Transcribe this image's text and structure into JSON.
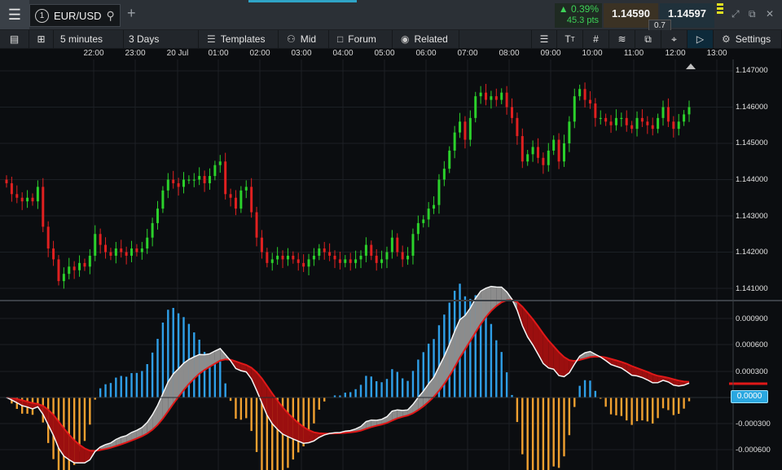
{
  "instrument": {
    "index": "1",
    "symbol": "EUR/USD",
    "change_pct": "0.39%",
    "change_pts": "45.3 pts",
    "bid": "1.14590",
    "ask": "1.14597",
    "spread": "0.7"
  },
  "toolbar": {
    "interval": "5 minutes",
    "range": "3 Days",
    "templates": "Templates",
    "mid": "Mid",
    "forum": "Forum",
    "related": "Related",
    "settings": "Settings"
  },
  "colors": {
    "up": "#2bd12b",
    "down": "#e02020",
    "macd_pos": "#2f9fe8",
    "macd_neg": "#f0a030",
    "accent": "#2fa4c7"
  },
  "icons": [
    "menu-icon",
    "search-icon",
    "plus-icon",
    "up-triangle-icon",
    "expand-icon",
    "popout-icon",
    "close-icon",
    "list-icon",
    "layout-icon",
    "templates-icon",
    "chat-icon",
    "eye-icon",
    "text-tool-icon",
    "grid-icon",
    "studies-icon",
    "clone-icon",
    "crosshair-icon",
    "tag-icon",
    "gear-icon"
  ],
  "time_axis": {
    "labels": [
      "22:00",
      "23:00",
      "20 Jul",
      "01:00",
      "02:00",
      "03:00",
      "04:00",
      "05:00",
      "06:00",
      "07:00",
      "08:00",
      "09:00",
      "10:00",
      "11:00",
      "12:00",
      "13:00"
    ]
  },
  "price_axis": {
    "labels": [
      "1.147000",
      "1.146000",
      "1.145000",
      "1.144000",
      "1.143000",
      "1.142000",
      "1.141000"
    ]
  },
  "indicator_axis": {
    "labels": [
      "0.000900",
      "0.000600",
      "0.000300",
      "-0.000300",
      "-0.000600"
    ],
    "current": "0.0000"
  },
  "chart_data": {
    "type": "candlestick",
    "price_range": [
      1.1408,
      1.1472
    ],
    "closes": [
      1.1439,
      1.1436,
      1.1435,
      1.1434,
      1.1435,
      1.1434,
      1.1438,
      1.1427,
      1.1421,
      1.1418,
      1.1412,
      1.1414,
      1.1416,
      1.1415,
      1.1417,
      1.1416,
      1.1419,
      1.1425,
      1.1422,
      1.142,
      1.1419,
      1.1421,
      1.142,
      1.1419,
      1.1421,
      1.142,
      1.1421,
      1.1424,
      1.1428,
      1.1432,
      1.1437,
      1.144,
      1.1439,
      1.1438,
      1.144,
      1.144,
      1.144,
      1.1441,
      1.1439,
      1.1441,
      1.1444,
      1.1445,
      1.1436,
      1.1435,
      1.1432,
      1.1437,
      1.1438,
      1.1431,
      1.1424,
      1.142,
      1.1417,
      1.1418,
      1.1419,
      1.1418,
      1.1419,
      1.1418,
      1.1417,
      1.1416,
      1.1418,
      1.1419,
      1.1421,
      1.142,
      1.1419,
      1.1418,
      1.1417,
      1.1418,
      1.1417,
      1.1418,
      1.1419,
      1.1422,
      1.1419,
      1.1417,
      1.1418,
      1.142,
      1.1424,
      1.142,
      1.1418,
      1.1419,
      1.1425,
      1.1428,
      1.1429,
      1.1432,
      1.1433,
      1.144,
      1.1443,
      1.1448,
      1.1453,
      1.1456,
      1.1451,
      1.1457,
      1.1463,
      1.1464,
      1.1462,
      1.1463,
      1.1462,
      1.1464,
      1.146,
      1.1457,
      1.1452,
      1.1445,
      1.1447,
      1.1449,
      1.1446,
      1.1444,
      1.1448,
      1.1451,
      1.1445,
      1.145,
      1.1456,
      1.1463,
      1.1465,
      1.1462,
      1.1461,
      1.1457,
      1.1457,
      1.1456,
      1.1455,
      1.1457,
      1.1457,
      1.1455,
      1.1454,
      1.1457,
      1.1456,
      1.1455,
      1.1454,
      1.1457,
      1.146,
      1.1456,
      1.1454,
      1.1456,
      1.1458,
      1.146
    ]
  }
}
